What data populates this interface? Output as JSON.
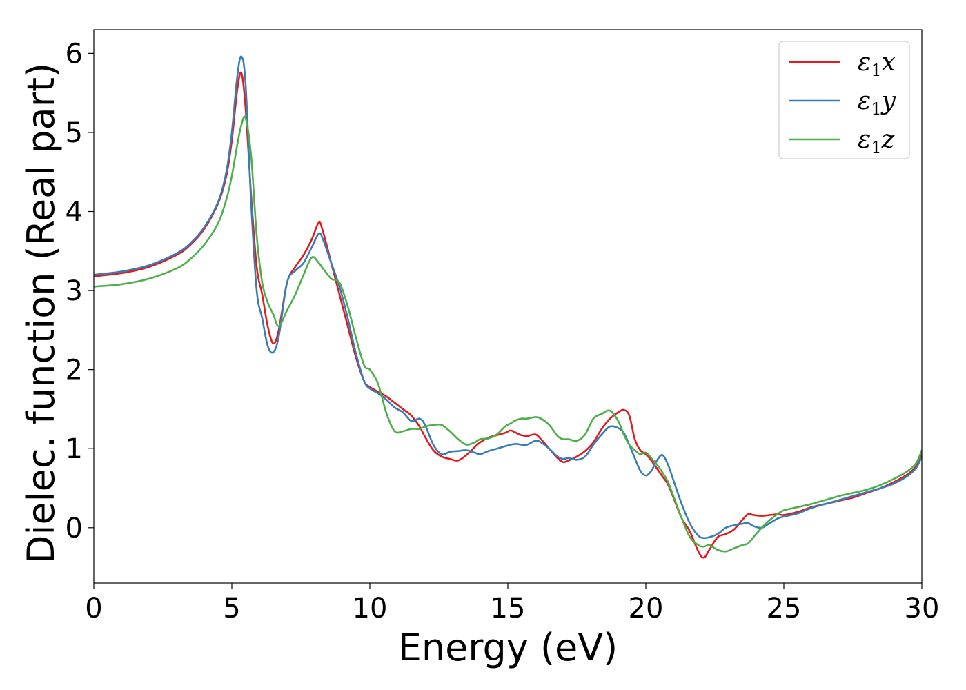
{
  "chart_data": {
    "type": "line",
    "xlabel": "Energy (eV)",
    "ylabel": "Dielec. function (Real part)",
    "xlim": [
      0,
      30
    ],
    "ylim": [
      -0.7,
      6.3
    ],
    "xticks": [
      0,
      5,
      10,
      15,
      20,
      25,
      30
    ],
    "yticks": [
      0,
      1,
      2,
      3,
      4,
      5,
      6
    ],
    "grid": false,
    "legend_position": "top-right",
    "series": [
      {
        "name": "ε1x",
        "legend": {
          "base": "ε",
          "sub": "1",
          "var": "x"
        },
        "color": "#e41a1c",
        "x": [
          0,
          1,
          2,
          3,
          3.5,
          4,
          4.5,
          4.8,
          5.0,
          5.2,
          5.35,
          5.5,
          5.7,
          5.9,
          6.1,
          6.3,
          6.5,
          6.7,
          7.0,
          7.3,
          7.6,
          7.9,
          8.15,
          8.3,
          8.6,
          8.9,
          9.2,
          9.5,
          9.8,
          10.0,
          10.3,
          10.6,
          10.9,
          11.2,
          11.5,
          11.8,
          12.0,
          12.3,
          12.6,
          12.9,
          13.2,
          13.5,
          13.8,
          14.0,
          14.3,
          14.6,
          14.9,
          15.1,
          15.3,
          15.5,
          15.7,
          16.0,
          16.2,
          16.5,
          16.8,
          17.0,
          17.2,
          17.5,
          17.8,
          18.1,
          18.4,
          18.7,
          19.0,
          19.2,
          19.4,
          19.6,
          19.8,
          20.0,
          20.2,
          20.4,
          20.6,
          20.8,
          21.0,
          21.3,
          21.6,
          21.9,
          22.1,
          22.3,
          22.6,
          22.9,
          23.2,
          23.5,
          23.7,
          23.9,
          24.2,
          24.5,
          24.8,
          25.0,
          25.5,
          26.0,
          26.5,
          27.0,
          27.5,
          28.0,
          28.5,
          29.0,
          29.5,
          29.8,
          30.0
        ],
        "y": [
          3.18,
          3.22,
          3.3,
          3.45,
          3.58,
          3.78,
          4.1,
          4.45,
          4.9,
          5.55,
          5.75,
          5.3,
          4.2,
          3.3,
          2.95,
          2.55,
          2.33,
          2.5,
          3.1,
          3.3,
          3.45,
          3.65,
          3.86,
          3.75,
          3.35,
          2.95,
          2.55,
          2.15,
          1.85,
          1.78,
          1.72,
          1.66,
          1.58,
          1.5,
          1.42,
          1.28,
          1.15,
          0.98,
          0.9,
          0.87,
          0.85,
          0.92,
          1.02,
          1.08,
          1.14,
          1.17,
          1.2,
          1.23,
          1.2,
          1.17,
          1.16,
          1.18,
          1.12,
          1.0,
          0.88,
          0.83,
          0.85,
          0.9,
          0.97,
          1.08,
          1.25,
          1.38,
          1.46,
          1.49,
          1.42,
          1.12,
          0.98,
          0.93,
          0.85,
          0.75,
          0.65,
          0.55,
          0.38,
          0.12,
          -0.05,
          -0.3,
          -0.38,
          -0.28,
          -0.12,
          -0.08,
          -0.02,
          0.1,
          0.17,
          0.16,
          0.15,
          0.16,
          0.17,
          0.16,
          0.2,
          0.26,
          0.3,
          0.34,
          0.38,
          0.44,
          0.5,
          0.58,
          0.68,
          0.78,
          0.92
        ]
      },
      {
        "name": "ε1y",
        "legend": {
          "base": "ε",
          "sub": "1",
          "var": "y"
        },
        "color": "#377eb8",
        "x": [
          0,
          1,
          2,
          3,
          3.5,
          4,
          4.5,
          4.8,
          5.0,
          5.2,
          5.35,
          5.5,
          5.7,
          5.9,
          6.1,
          6.3,
          6.5,
          6.7,
          7.0,
          7.3,
          7.6,
          7.9,
          8.15,
          8.3,
          8.6,
          8.9,
          9.2,
          9.5,
          9.8,
          10.0,
          10.3,
          10.6,
          10.9,
          11.2,
          11.5,
          11.8,
          12.0,
          12.3,
          12.6,
          12.9,
          13.2,
          13.5,
          13.8,
          14.0,
          14.3,
          14.6,
          14.9,
          15.1,
          15.3,
          15.5,
          15.7,
          16.0,
          16.2,
          16.5,
          16.8,
          17.0,
          17.2,
          17.5,
          17.8,
          18.1,
          18.4,
          18.7,
          19.0,
          19.2,
          19.4,
          19.6,
          19.8,
          20.0,
          20.2,
          20.4,
          20.6,
          20.8,
          21.0,
          21.3,
          21.6,
          21.9,
          22.1,
          22.3,
          22.6,
          22.9,
          23.2,
          23.5,
          23.7,
          23.9,
          24.2,
          24.5,
          24.8,
          25.0,
          25.5,
          26.0,
          26.5,
          27.0,
          27.5,
          28.0,
          28.5,
          29.0,
          29.5,
          29.8,
          30.0
        ],
        "y": [
          3.2,
          3.24,
          3.32,
          3.47,
          3.6,
          3.8,
          4.12,
          4.5,
          5.0,
          5.72,
          5.96,
          5.6,
          4.1,
          3.0,
          2.65,
          2.3,
          2.22,
          2.42,
          3.1,
          3.25,
          3.35,
          3.55,
          3.72,
          3.65,
          3.35,
          3.05,
          2.65,
          2.2,
          1.85,
          1.76,
          1.7,
          1.62,
          1.52,
          1.46,
          1.35,
          1.38,
          1.3,
          1.05,
          0.93,
          0.96,
          0.97,
          0.98,
          0.95,
          0.93,
          0.97,
          1.0,
          1.03,
          1.05,
          1.06,
          1.05,
          1.05,
          1.1,
          1.08,
          1.0,
          0.9,
          0.87,
          0.88,
          0.86,
          0.9,
          1.05,
          1.18,
          1.28,
          1.26,
          1.2,
          1.05,
          0.88,
          0.72,
          0.66,
          0.72,
          0.85,
          0.92,
          0.8,
          0.6,
          0.3,
          0.05,
          -0.1,
          -0.13,
          -0.12,
          -0.08,
          0.0,
          0.03,
          0.05,
          0.06,
          0.02,
          0.0,
          0.06,
          0.12,
          0.14,
          0.18,
          0.25,
          0.3,
          0.35,
          0.4,
          0.45,
          0.5,
          0.56,
          0.66,
          0.76,
          0.9
        ]
      },
      {
        "name": "ε1z",
        "legend": {
          "base": "ε",
          "sub": "1",
          "var": "z"
        },
        "color": "#4daf4a",
        "x": [
          0,
          1,
          2,
          3,
          3.5,
          4,
          4.5,
          4.8,
          5.0,
          5.2,
          5.35,
          5.5,
          5.7,
          5.9,
          6.1,
          6.3,
          6.5,
          6.7,
          7.0,
          7.3,
          7.6,
          7.9,
          8.15,
          8.3,
          8.6,
          8.9,
          9.2,
          9.5,
          9.8,
          10.0,
          10.3,
          10.6,
          10.9,
          11.2,
          11.5,
          11.8,
          12.0,
          12.3,
          12.6,
          12.9,
          13.2,
          13.5,
          13.8,
          14.0,
          14.3,
          14.6,
          14.9,
          15.1,
          15.3,
          15.5,
          15.7,
          16.0,
          16.2,
          16.5,
          16.8,
          17.0,
          17.2,
          17.5,
          17.8,
          18.1,
          18.4,
          18.7,
          19.0,
          19.2,
          19.4,
          19.6,
          19.8,
          20.0,
          20.2,
          20.4,
          20.6,
          20.8,
          21.0,
          21.3,
          21.6,
          21.9,
          22.1,
          22.3,
          22.6,
          22.9,
          23.2,
          23.5,
          23.7,
          23.9,
          24.2,
          24.5,
          24.8,
          25.0,
          25.5,
          26.0,
          26.5,
          27.0,
          27.5,
          28.0,
          28.5,
          29.0,
          29.5,
          29.8,
          30.0
        ],
        "y": [
          3.05,
          3.08,
          3.15,
          3.28,
          3.4,
          3.58,
          3.85,
          4.15,
          4.45,
          4.85,
          5.1,
          5.18,
          4.7,
          3.7,
          3.1,
          2.85,
          2.7,
          2.55,
          2.75,
          2.95,
          3.2,
          3.42,
          3.35,
          3.28,
          3.15,
          3.1,
          2.8,
          2.4,
          2.05,
          2.0,
          1.82,
          1.45,
          1.22,
          1.22,
          1.25,
          1.25,
          1.28,
          1.3,
          1.3,
          1.22,
          1.12,
          1.05,
          1.08,
          1.12,
          1.13,
          1.18,
          1.28,
          1.32,
          1.36,
          1.38,
          1.38,
          1.4,
          1.38,
          1.3,
          1.16,
          1.12,
          1.12,
          1.1,
          1.18,
          1.38,
          1.44,
          1.48,
          1.35,
          1.18,
          1.05,
          0.98,
          0.93,
          0.95,
          0.88,
          0.8,
          0.7,
          0.58,
          0.4,
          0.12,
          -0.12,
          -0.22,
          -0.24,
          -0.22,
          -0.28,
          -0.3,
          -0.26,
          -0.22,
          -0.2,
          -0.12,
          0.0,
          0.1,
          0.18,
          0.22,
          0.26,
          0.3,
          0.35,
          0.4,
          0.44,
          0.48,
          0.54,
          0.62,
          0.72,
          0.82,
          0.98
        ]
      }
    ]
  }
}
